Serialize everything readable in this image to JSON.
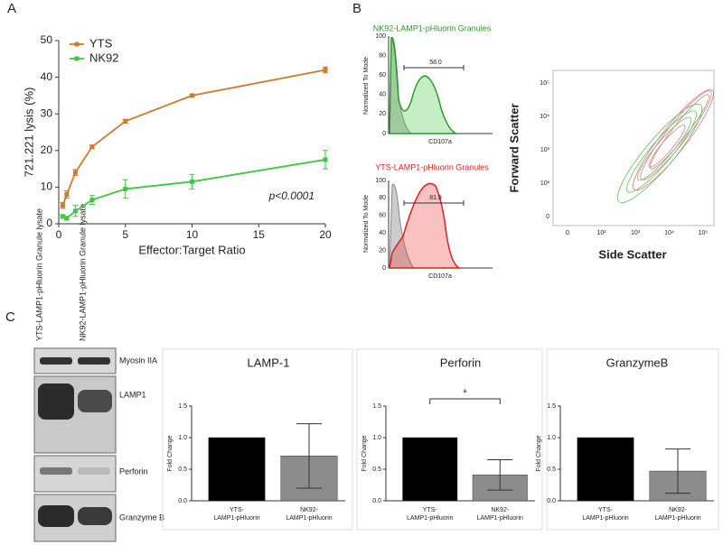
{
  "panels": [
    "A",
    "B",
    "C"
  ],
  "chart_data": [
    {
      "type": "line",
      "ylabel": "721.221 lysis (%)",
      "xlabel": "Effector:Target Ratio",
      "annotation": "p<0.0001",
      "xlim": [
        0,
        20
      ],
      "xticks": [
        0,
        5,
        10,
        15,
        20
      ],
      "ylim": [
        0,
        50
      ],
      "yticks": [
        0,
        10,
        20,
        30,
        40,
        50
      ],
      "legend": "top-left",
      "x": [
        0.3,
        0.6,
        1.25,
        2.5,
        5,
        10,
        20
      ],
      "series": [
        {
          "name": "YTS",
          "color": "#d07a2a",
          "values": [
            5,
            8,
            14,
            21,
            28,
            35,
            42
          ],
          "errors": [
            0.8,
            1,
            0.8,
            0.5,
            0.5,
            0.3,
            0.8
          ]
        },
        {
          "name": "NK92",
          "color": "#3fc73f",
          "values": [
            2,
            1.5,
            3.5,
            6.5,
            9.5,
            11.5,
            17.5
          ],
          "errors": [
            0.5,
            0.5,
            1.5,
            1.2,
            2.5,
            2,
            2.5
          ]
        }
      ]
    },
    {
      "type": "bar",
      "title": "LAMP-1",
      "ylabel": "Fold Change",
      "categories": [
        "YTS-LAMP1-pHluorin",
        "NK92-LAMP1-pHluorin"
      ],
      "values": [
        1.0,
        0.71
      ],
      "errors": [
        0,
        0.51
      ],
      "colors": [
        "#000000",
        "#8c8c8c"
      ],
      "ylim": [
        0,
        1.5
      ],
      "yticks": [
        {
          "value": 0,
          "label": "0.0"
        },
        {
          "value": 0.5,
          "label": "0.5"
        },
        {
          "value": 1,
          "label": "1.0"
        },
        {
          "value": 1.5,
          "label": "1.5"
        }
      ]
    },
    {
      "type": "bar",
      "title": "Perforin",
      "ylabel": "Fold Change",
      "categories": [
        "YTS-LAMP1-pHluorin",
        "NK92-LAMP1-pHluorin"
      ],
      "values": [
        1.0,
        0.41
      ],
      "errors": [
        0,
        0.24
      ],
      "colors": [
        "#000000",
        "#8c8c8c"
      ],
      "ylim": [
        0,
        1.5
      ],
      "annotation": "*",
      "yticks": [
        {
          "value": 0,
          "label": "0.0"
        },
        {
          "value": 0.5,
          "label": "0.5"
        },
        {
          "value": 1,
          "label": "1.0"
        },
        {
          "value": 1.5,
          "label": "1.5"
        }
      ]
    },
    {
      "type": "bar",
      "title": "GranzymeB",
      "ylabel": "Fold Change",
      "categories": [
        "YTS-LAMP1-pHluorin",
        "NK92-LAMP1-pHluorin"
      ],
      "values": [
        1.0,
        0.47
      ],
      "errors": [
        0,
        0.35
      ],
      "colors": [
        "#000000",
        "#8c8c8c"
      ],
      "ylim": [
        0,
        1.5
      ],
      "yticks": [
        {
          "value": 0,
          "label": "0.0"
        },
        {
          "value": 0.5,
          "label": "0.5"
        },
        {
          "value": 1,
          "label": "1.0"
        },
        {
          "value": 1.5,
          "label": "1.5"
        }
      ]
    }
  ],
  "flow": {
    "histograms": [
      {
        "title": "NK92-LAMP1-pHluorin Granules",
        "gate": "58.0",
        "ylabel": "Normalized To Mode",
        "xlabel": "CD107a",
        "yticks": [
          "0",
          "20",
          "40",
          "60",
          "80",
          "100"
        ]
      },
      {
        "title": "YTS-LAMP1-pHluorin Granules",
        "gate": "81.9",
        "ylabel": "Normalized To Mode",
        "xlabel": "CD107a",
        "yticks": [
          "0",
          "20",
          "40",
          "60",
          "80",
          "100"
        ]
      }
    ],
    "contour": {
      "ylabel": "Forward Scatter",
      "xlabel": "Side Scatter",
      "xticks": [
        "0",
        "10²",
        "10³",
        "10⁴",
        "10⁵"
      ],
      "yticks": [
        "0",
        "10²",
        "10³",
        "10⁴",
        "10⁵"
      ]
    }
  },
  "blot": {
    "lanes": [
      "YTS-LAMP1-pHluorin Granule lysate",
      "NK92-LAMP1-pHluorin Granule lysate"
    ],
    "bands": [
      "Myosin IIA",
      "LAMP1",
      "Perforin",
      "Granzyme B"
    ]
  }
}
